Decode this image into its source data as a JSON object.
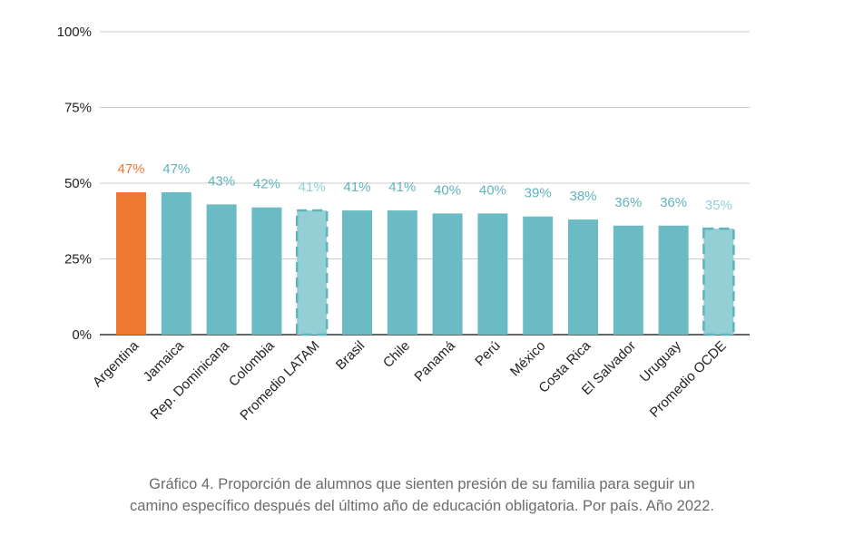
{
  "chart_data": {
    "type": "bar",
    "categories": [
      "Argentina",
      "Jamaica",
      "Rep. Dominicana",
      "Colombia",
      "Promedio LATAM",
      "Brasil",
      "Chile",
      "Panamá",
      "Perú",
      "México",
      "Costa Rica",
      "El Salvador",
      "Uruguay",
      "Promedio OCDE"
    ],
    "values": [
      47,
      47,
      43,
      42,
      41,
      41,
      41,
      40,
      40,
      39,
      38,
      36,
      36,
      35
    ],
    "value_labels": [
      "47%",
      "47%",
      "43%",
      "42%",
      "41%",
      "41%",
      "41%",
      "40%",
      "40%",
      "39%",
      "38%",
      "36%",
      "36%",
      "35%"
    ],
    "ylim": [
      0,
      100
    ],
    "yticks": [
      0,
      25,
      50,
      75,
      100
    ],
    "ytick_labels": [
      "0%",
      "25%",
      "50%",
      "75%",
      "100%"
    ],
    "grid": true,
    "bar_styles": [
      "highlight",
      "normal",
      "normal",
      "normal",
      "average",
      "normal",
      "normal",
      "normal",
      "normal",
      "normal",
      "normal",
      "normal",
      "normal",
      "average"
    ],
    "colors": {
      "highlight": "#ee7a31",
      "normal": "#6abbc4",
      "average": "#94cfd6",
      "average_border": "#5fb3bc",
      "label_normal": "#5fb3bc",
      "label_average": "#94cfd6",
      "grid": "#cccccc",
      "axis": "#333333"
    }
  },
  "caption": {
    "line1": "Gráfico 4. Proporción de alumnos que sienten presión de su familia para seguir un",
    "line2": "camino específico después del último año de educación obligatoria. Por país. Año 2022."
  }
}
